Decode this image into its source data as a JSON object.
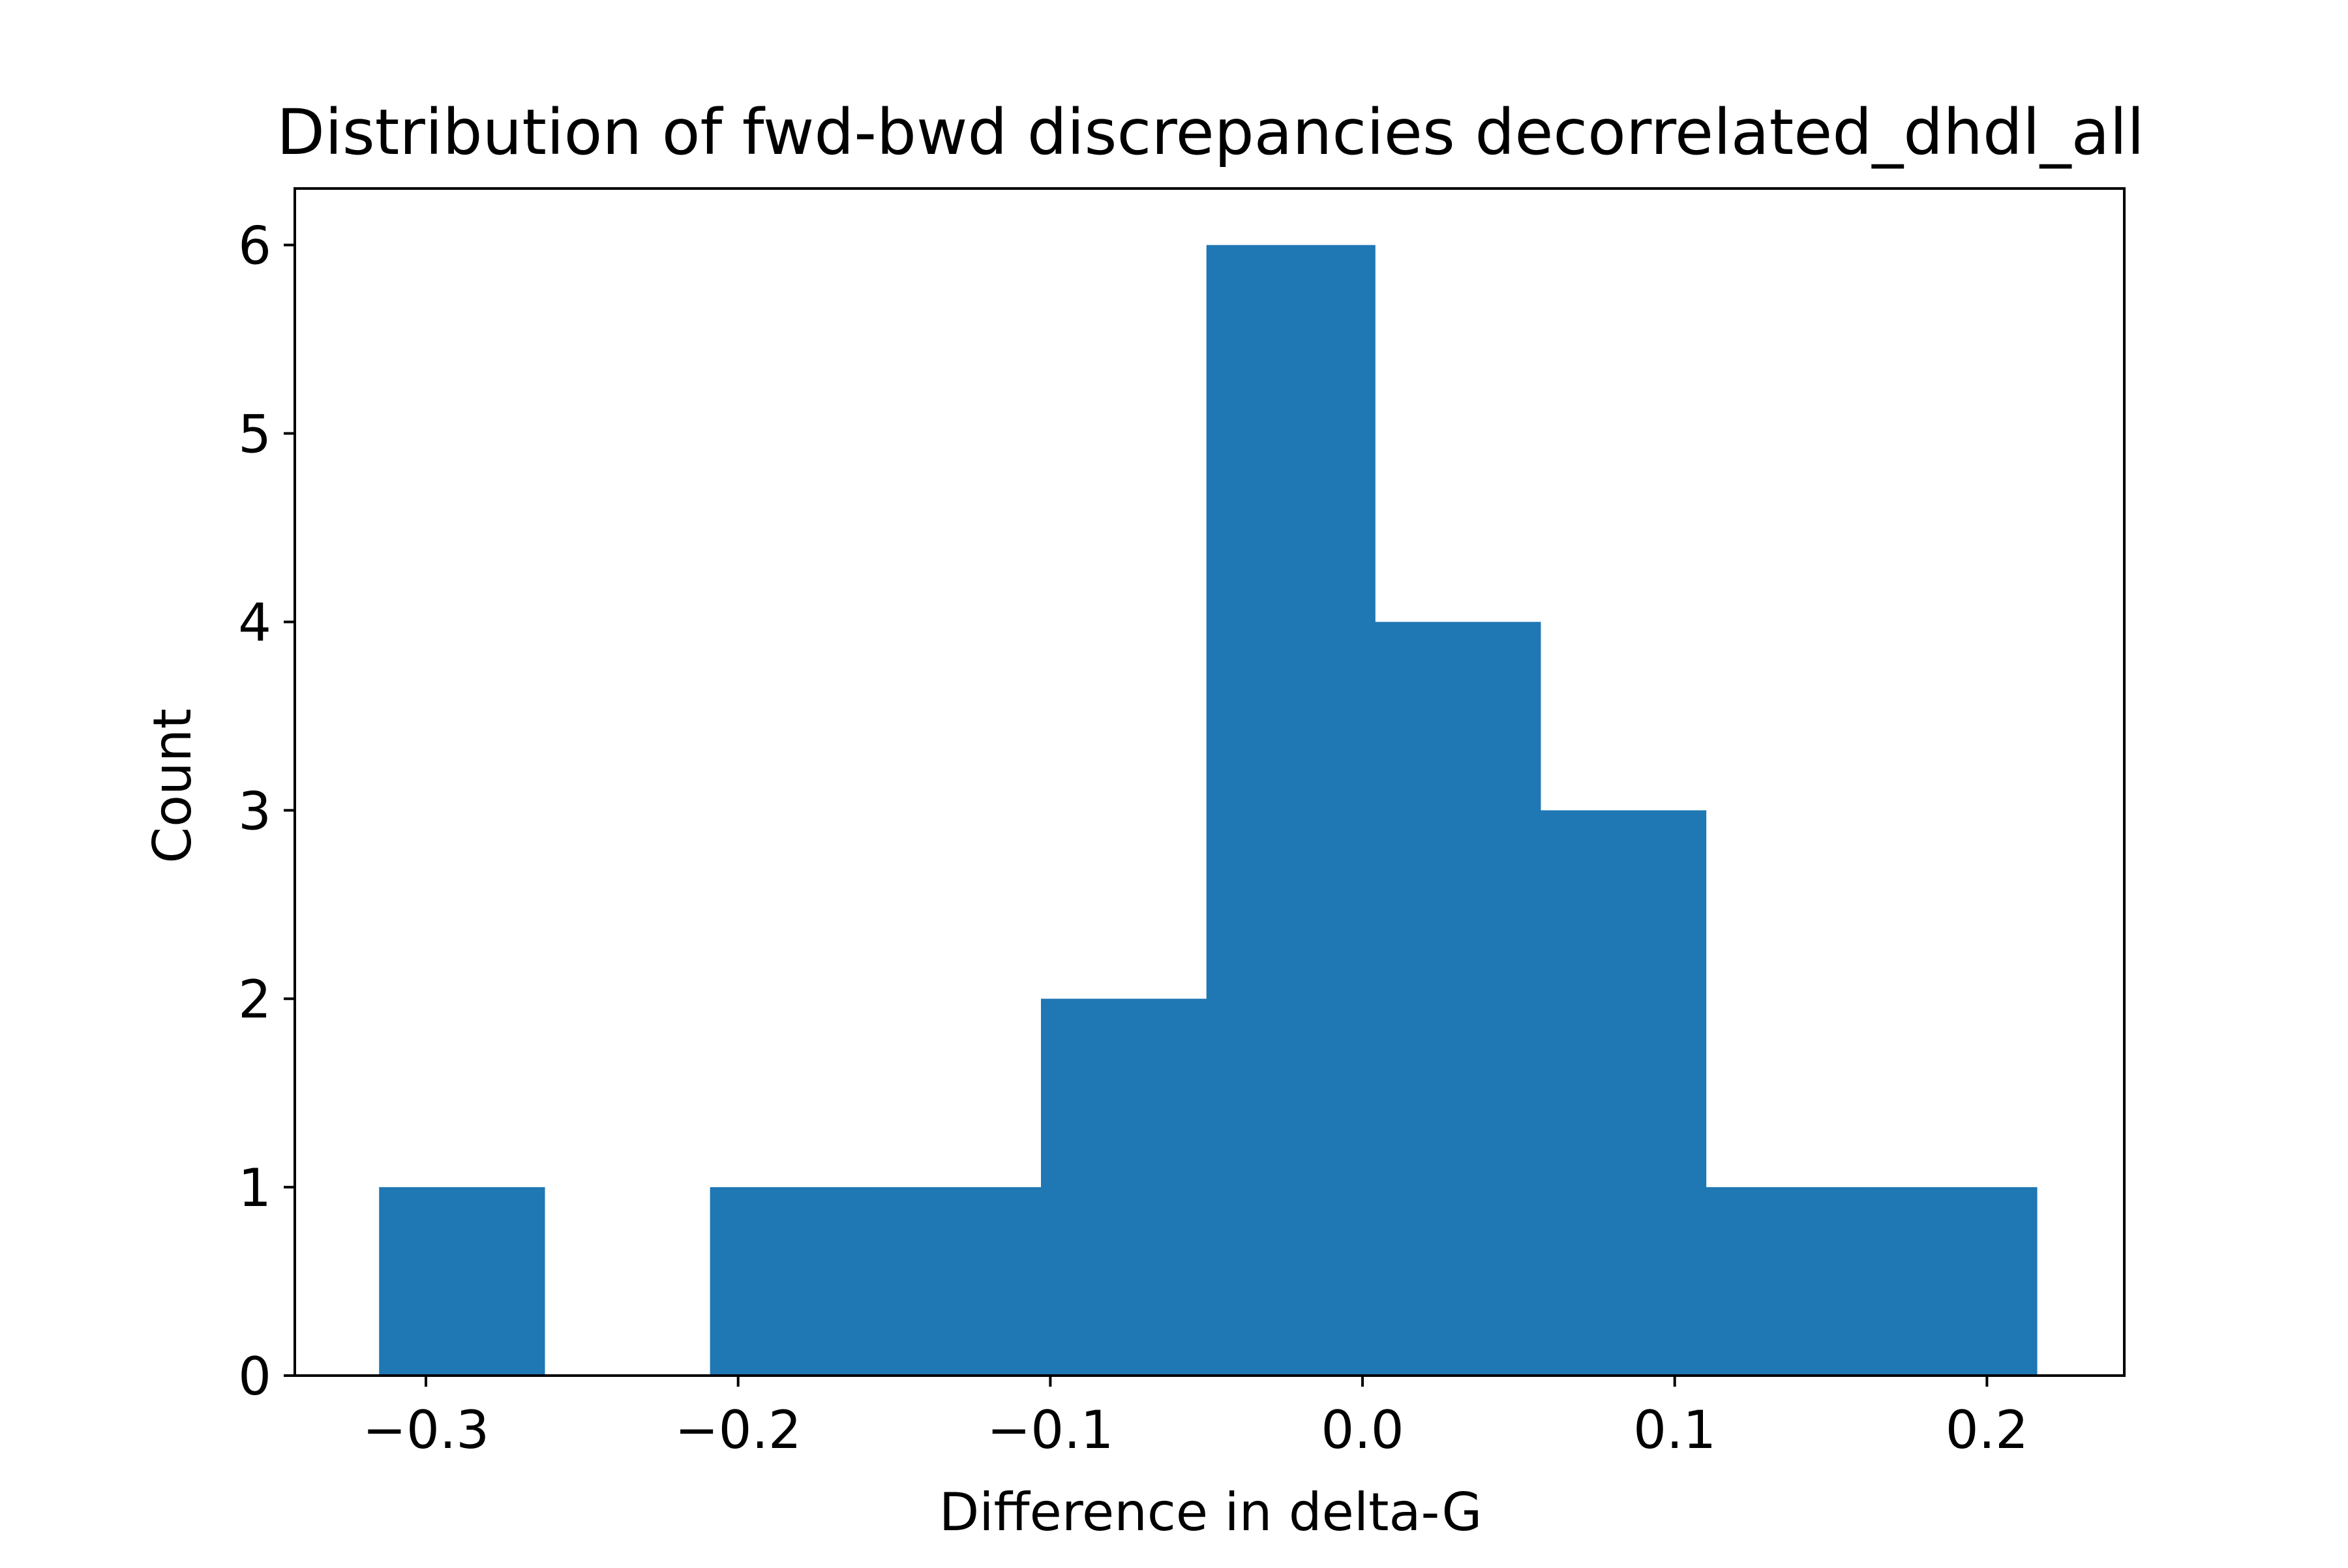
{
  "chart_data": {
    "type": "bar",
    "title": "Distribution of fwd-bwd discrepancies decorrelated_dhdl_all",
    "xlabel": "Difference in delta-G",
    "ylabel": "Count",
    "xlim": [
      -0.342,
      0.244
    ],
    "ylim": [
      0,
      6.3
    ],
    "xticks": [
      -0.3,
      -0.2,
      -0.1,
      0.0,
      0.1,
      0.2
    ],
    "xtick_labels": [
      "−0.3",
      "−0.2",
      "−0.1",
      "0.0",
      "0.1",
      "0.2"
    ],
    "yticks": [
      0,
      1,
      2,
      3,
      4,
      5,
      6
    ],
    "ytick_labels": [
      "0",
      "1",
      "2",
      "3",
      "4",
      "5",
      "6"
    ],
    "grid": false,
    "legend": "none",
    "bar_color": "#1f77b4",
    "bins": [
      {
        "x0": -0.315,
        "x1": -0.262,
        "count": 1
      },
      {
        "x0": -0.262,
        "x1": -0.209,
        "count": 0
      },
      {
        "x0": -0.209,
        "x1": -0.156,
        "count": 1
      },
      {
        "x0": -0.156,
        "x1": -0.103,
        "count": 1
      },
      {
        "x0": -0.103,
        "x1": -0.05,
        "count": 2
      },
      {
        "x0": -0.05,
        "x1": 0.004,
        "count": 6
      },
      {
        "x0": 0.004,
        "x1": 0.057,
        "count": 4
      },
      {
        "x0": 0.057,
        "x1": 0.11,
        "count": 3
      },
      {
        "x0": 0.11,
        "x1": 0.163,
        "count": 1
      },
      {
        "x0": 0.163,
        "x1": 0.216,
        "count": 1
      }
    ]
  }
}
